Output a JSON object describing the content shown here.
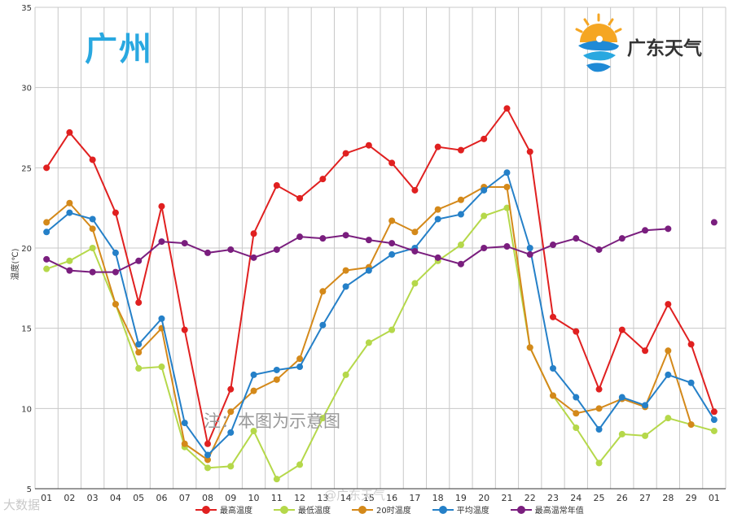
{
  "header": {
    "city": "广州"
  },
  "brand": {
    "name": "广东天气"
  },
  "note": "注：本图为示意图",
  "watermark": {
    "left": "大数据",
    "middle": "@广东天气"
  },
  "chart_data": {
    "type": "line",
    "ylabel": "温度(℃)",
    "xlabel": "",
    "ylim": [
      5,
      35
    ],
    "yticks": [
      5,
      10,
      15,
      20,
      25,
      30,
      35
    ],
    "grid": true,
    "legend_position": "bottom",
    "categories": [
      "01",
      "02",
      "03",
      "04",
      "05",
      "06",
      "07",
      "08",
      "09",
      "10",
      "11",
      "12",
      "13",
      "14",
      "15",
      "16",
      "17",
      "18",
      "19",
      "20",
      "21",
      "22",
      "23",
      "24",
      "25",
      "26",
      "27",
      "28",
      "29",
      "01"
    ],
    "series": [
      {
        "name": "最高温度",
        "color": "#e02020",
        "values": [
          25.0,
          27.2,
          25.5,
          22.2,
          16.6,
          22.6,
          14.9,
          7.8,
          11.2,
          20.9,
          23.9,
          23.1,
          24.3,
          25.9,
          26.4,
          25.3,
          23.6,
          26.3,
          26.1,
          26.8,
          28.7,
          26.0,
          15.7,
          14.8,
          11.2,
          14.9,
          13.6,
          16.5,
          14.0,
          9.8
        ]
      },
      {
        "name": "最低温度",
        "color": "#b5d84a",
        "values": [
          18.7,
          19.2,
          20.0,
          16.5,
          12.5,
          12.6,
          7.6,
          6.3,
          6.4,
          8.6,
          5.6,
          6.5,
          9.4,
          12.1,
          14.1,
          14.9,
          17.8,
          19.2,
          20.2,
          22.0,
          22.5,
          13.8,
          10.8,
          8.8,
          6.6,
          8.4,
          8.3,
          9.4,
          9.0,
          8.6
        ]
      },
      {
        "name": "20时温度",
        "color": "#d4891a",
        "values": [
          21.6,
          22.8,
          21.2,
          16.5,
          13.5,
          15.0,
          7.8,
          6.8,
          9.8,
          11.1,
          11.8,
          13.1,
          17.3,
          18.6,
          18.8,
          21.7,
          21.0,
          22.4,
          23.0,
          23.8,
          23.8,
          13.8,
          10.8,
          9.7,
          10.0,
          10.6,
          10.1,
          13.6,
          9.0,
          null
        ]
      },
      {
        "name": "平均温度",
        "color": "#2580c8",
        "values": [
          21.0,
          22.2,
          21.8,
          19.7,
          14.0,
          15.6,
          9.1,
          7.1,
          8.5,
          12.1,
          12.4,
          12.6,
          15.2,
          17.6,
          18.6,
          19.6,
          20.0,
          21.8,
          22.1,
          23.6,
          24.7,
          20.0,
          12.5,
          10.7,
          8.7,
          10.7,
          10.2,
          12.1,
          11.6,
          9.3
        ]
      },
      {
        "name": "最高温常年值",
        "color": "#7a1e7e",
        "values": [
          19.3,
          18.6,
          18.5,
          18.5,
          19.2,
          20.4,
          20.3,
          19.7,
          19.9,
          19.4,
          19.9,
          20.7,
          20.6,
          20.8,
          20.5,
          20.3,
          19.8,
          19.4,
          19.0,
          20.0,
          20.1,
          19.6,
          20.2,
          20.6,
          19.9,
          20.6,
          21.1,
          21.2,
          null,
          21.6
        ]
      }
    ]
  }
}
